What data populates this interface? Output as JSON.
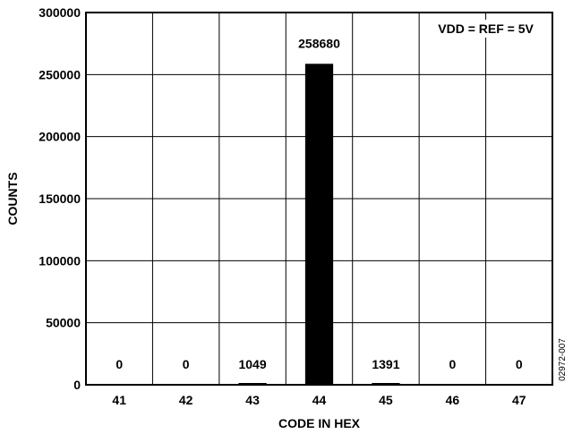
{
  "chart_data": {
    "type": "bar",
    "categories": [
      "41",
      "42",
      "43",
      "44",
      "45",
      "46",
      "47"
    ],
    "values": [
      0,
      0,
      1049,
      258680,
      1391,
      0,
      0
    ],
    "data_labels": [
      "0",
      "0",
      "1049",
      "258680",
      "1391",
      "0",
      "0"
    ],
    "xlabel": "CODE IN HEX",
    "ylabel": "COUNTS",
    "ylim": [
      0,
      300000
    ],
    "yticks": [
      0,
      50000,
      100000,
      150000,
      200000,
      250000,
      300000
    ],
    "ytick_labels": [
      "0",
      "50000",
      "100000",
      "150000",
      "200000",
      "250000",
      "300000"
    ],
    "grid": true,
    "annotation": "VDD = REF = 5V",
    "bar_color": "#000000"
  },
  "figure_id": "02972-007"
}
